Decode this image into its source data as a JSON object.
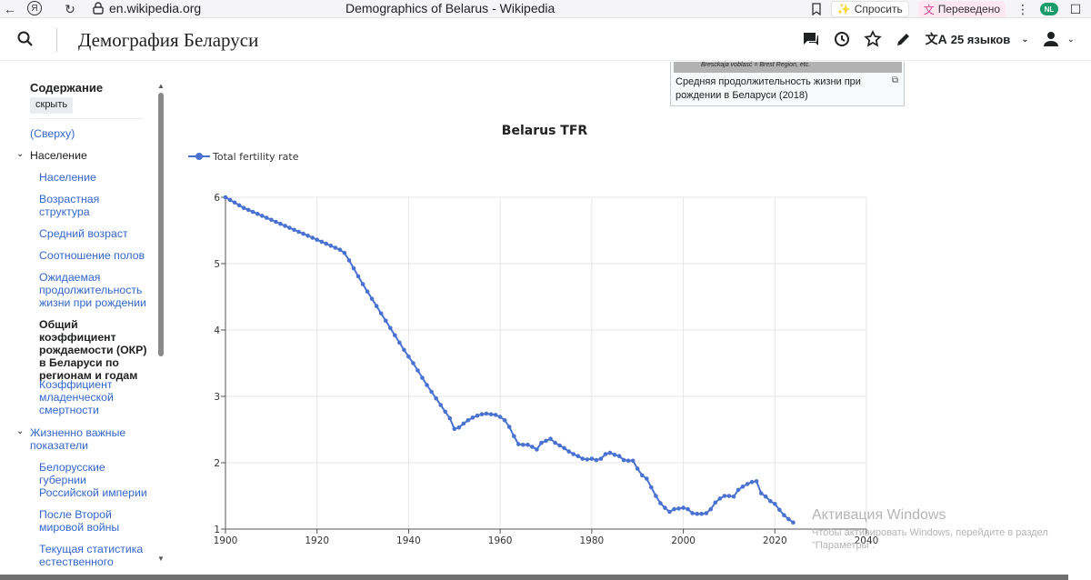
{
  "browser": {
    "url": "en.wikipedia.org",
    "tab_title": "Demographics of Belarus - Wikipedia",
    "ask_label": "Спросить",
    "translated_label": "Переведено",
    "profile_badge": "NL"
  },
  "header": {
    "title": "Демография Беларуси",
    "languages_label": "25 языков"
  },
  "toc": {
    "title": "Содержание",
    "hide_label": "скрыть",
    "items": [
      {
        "label": "(Сверху)"
      },
      {
        "label": "Население"
      },
      {
        "label": "Население"
      },
      {
        "label": "Возрастная структура"
      },
      {
        "label": "Средний возраст"
      },
      {
        "label": "Соотношение полов"
      },
      {
        "label": "Ожидаемая продолжительность жизни при рождении"
      },
      {
        "label": "Общий коэффициент рождаемости (ОКР) в Беларуси по регионам и годам"
      },
      {
        "label": "Коэффициент младенческой смертности"
      },
      {
        "label": "Жизненно важные показатели"
      },
      {
        "label": "Белорусские губернии Российской империи"
      },
      {
        "label": "После Второй мировой войны"
      },
      {
        "label": "Текущая статистика естественного"
      }
    ]
  },
  "figure": {
    "map_text": "Brescka­ja voblasć = Brest Region, etc.",
    "caption": "Средняя продолжительность жизни при рождении в Беларуси (2018)"
  },
  "watermark": {
    "title": "Активация Windows",
    "subtitle": "Чтобы активировать Windows, перейдите в раздел \"Параметры\"."
  },
  "chart_data": {
    "type": "line",
    "title": "Belarus TFR",
    "legend_position": "top-left",
    "grid": true,
    "xlim": [
      1900,
      2040
    ],
    "ylim": [
      1,
      6
    ],
    "x_ticks": [
      1900,
      1920,
      1940,
      1960,
      1980,
      2000,
      2020,
      2040
    ],
    "y_ticks": [
      1,
      2,
      3,
      4,
      5,
      6
    ],
    "color": "#4a72d0",
    "series": [
      {
        "name": "Total fertility rate",
        "x": [
          1900,
          1901,
          1902,
          1903,
          1904,
          1905,
          1906,
          1907,
          1908,
          1909,
          1910,
          1911,
          1912,
          1913,
          1914,
          1915,
          1916,
          1917,
          1918,
          1919,
          1920,
          1921,
          1922,
          1923,
          1924,
          1925,
          1926,
          1927,
          1928,
          1929,
          1930,
          1931,
          1932,
          1933,
          1934,
          1935,
          1936,
          1937,
          1938,
          1939,
          1940,
          1941,
          1942,
          1943,
          1944,
          1945,
          1946,
          1947,
          1948,
          1949,
          1950,
          1951,
          1952,
          1953,
          1954,
          1955,
          1956,
          1957,
          1958,
          1959,
          1960,
          1961,
          1962,
          1963,
          1964,
          1965,
          1966,
          1967,
          1968,
          1969,
          1970,
          1971,
          1972,
          1973,
          1974,
          1975,
          1976,
          1977,
          1978,
          1979,
          1980,
          1981,
          1982,
          1983,
          1984,
          1985,
          1986,
          1987,
          1988,
          1989,
          1990,
          1991,
          1992,
          1993,
          1994,
          1995,
          1996,
          1997,
          1998,
          1999,
          2000,
          2001,
          2002,
          2003,
          2004,
          2005,
          2006,
          2007,
          2008,
          2009,
          2010,
          2011,
          2012,
          2013,
          2014,
          2015,
          2016,
          2017,
          2018,
          2019,
          2020,
          2021,
          2022,
          2023,
          2024
        ],
        "y": [
          6.0,
          5.96,
          5.92,
          5.88,
          5.84,
          5.81,
          5.78,
          5.75,
          5.72,
          5.69,
          5.66,
          5.63,
          5.6,
          5.57,
          5.54,
          5.51,
          5.48,
          5.45,
          5.42,
          5.39,
          5.36,
          5.33,
          5.3,
          5.27,
          5.24,
          5.21,
          5.16,
          5.05,
          4.93,
          4.81,
          4.69,
          4.58,
          4.47,
          4.36,
          4.25,
          4.14,
          4.03,
          3.92,
          3.81,
          3.7,
          3.6,
          3.5,
          3.39,
          3.28,
          3.17,
          3.07,
          2.97,
          2.87,
          2.77,
          2.67,
          2.51,
          2.53,
          2.59,
          2.64,
          2.68,
          2.71,
          2.73,
          2.74,
          2.73,
          2.72,
          2.69,
          2.64,
          2.54,
          2.4,
          2.28,
          2.27,
          2.27,
          2.24,
          2.2,
          2.3,
          2.33,
          2.36,
          2.3,
          2.26,
          2.22,
          2.17,
          2.13,
          2.1,
          2.06,
          2.05,
          2.06,
          2.04,
          2.06,
          2.13,
          2.15,
          2.12,
          2.1,
          2.04,
          2.03,
          2.03,
          1.91,
          1.81,
          1.76,
          1.63,
          1.5,
          1.39,
          1.32,
          1.26,
          1.3,
          1.31,
          1.32,
          1.3,
          1.24,
          1.23,
          1.23,
          1.24,
          1.3,
          1.4,
          1.46,
          1.5,
          1.5,
          1.49,
          1.59,
          1.64,
          1.68,
          1.71,
          1.72,
          1.54,
          1.49,
          1.42,
          1.38,
          1.29,
          1.21,
          1.15,
          1.1
        ]
      }
    ]
  }
}
